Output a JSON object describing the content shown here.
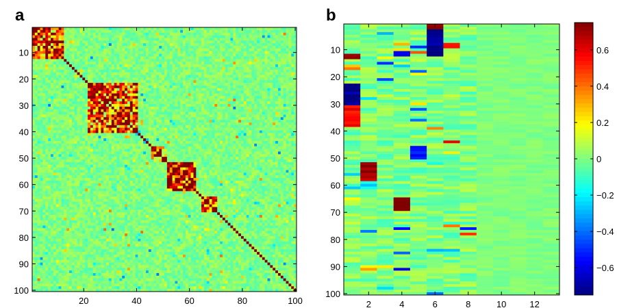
{
  "panels": [
    {
      "label": "a"
    },
    {
      "label": "b"
    }
  ],
  "chart_data": [
    {
      "type": "heatmap",
      "panel": "a",
      "title": "",
      "xlabel": "",
      "ylabel": "",
      "rows": 100,
      "cols": 100,
      "xlim": [
        1,
        100
      ],
      "ylim": [
        1,
        100
      ],
      "xticks": [
        20,
        40,
        60,
        80,
        100
      ],
      "yticks": [
        10,
        20,
        30,
        40,
        50,
        60,
        70,
        80,
        90,
        100
      ],
      "value_range": [
        -0.75,
        0.75
      ],
      "diagonal_value": 0.75,
      "blocks": [
        {
          "rows": [
            1,
            12
          ],
          "cols": [
            1,
            12
          ],
          "value": 0.5
        },
        {
          "rows": [
            22,
            40
          ],
          "cols": [
            22,
            40
          ],
          "value": 0.45
        },
        {
          "rows": [
            46,
            51
          ],
          "cols": [
            46,
            51
          ],
          "value": 0.35
        },
        {
          "rows": [
            52,
            62
          ],
          "cols": [
            52,
            62
          ],
          "value": 0.6
        },
        {
          "rows": [
            65,
            70
          ],
          "cols": [
            65,
            70
          ],
          "value": 0.6
        }
      ],
      "colormap": "jet"
    },
    {
      "type": "heatmap",
      "panel": "b",
      "title": "",
      "xlabel": "",
      "ylabel": "",
      "rows": 100,
      "cols": 13,
      "xlim": [
        1,
        13
      ],
      "ylim": [
        1,
        100
      ],
      "xticks": [
        2,
        4,
        6,
        8,
        10,
        12
      ],
      "yticks": [
        10,
        20,
        30,
        40,
        50,
        60,
        70,
        80,
        90,
        100
      ],
      "colorbar": {
        "range": [
          -0.75,
          0.75
        ],
        "ticks": [
          -0.6,
          -0.4,
          -0.2,
          0,
          0.2,
          0.4,
          0.6
        ],
        "tick_labels": [
          "−0.6",
          "−0.4",
          "−0.2",
          "0",
          "0.2",
          "0.4",
          "0.6"
        ]
      },
      "features": [
        {
          "col": 1,
          "rows": [
            23,
            30
          ],
          "value": -0.75
        },
        {
          "col": 1,
          "rows": [
            31,
            38
          ],
          "value": 0.55
        },
        {
          "col": 1,
          "rows": [
            12,
            13
          ],
          "value": 0.7
        },
        {
          "col": 2,
          "rows": [
            52,
            58
          ],
          "value": 0.7
        },
        {
          "col": 2,
          "rows": [
            59,
            61
          ],
          "value": -0.2
        },
        {
          "col": 4,
          "rows": [
            65,
            69
          ],
          "value": 0.75
        },
        {
          "col": 4,
          "rows": [
            11,
            12
          ],
          "value": -0.6
        },
        {
          "col": 5,
          "rows": [
            46,
            50
          ],
          "value": -0.55
        },
        {
          "col": 6,
          "rows": [
            1,
            12
          ],
          "value": -0.75
        },
        {
          "col": 6,
          "rows": [
            1,
            2
          ],
          "value": 0.75
        },
        {
          "col": 7,
          "rows": [
            8,
            9
          ],
          "value": 0.55
        }
      ],
      "colormap": "jet"
    }
  ]
}
